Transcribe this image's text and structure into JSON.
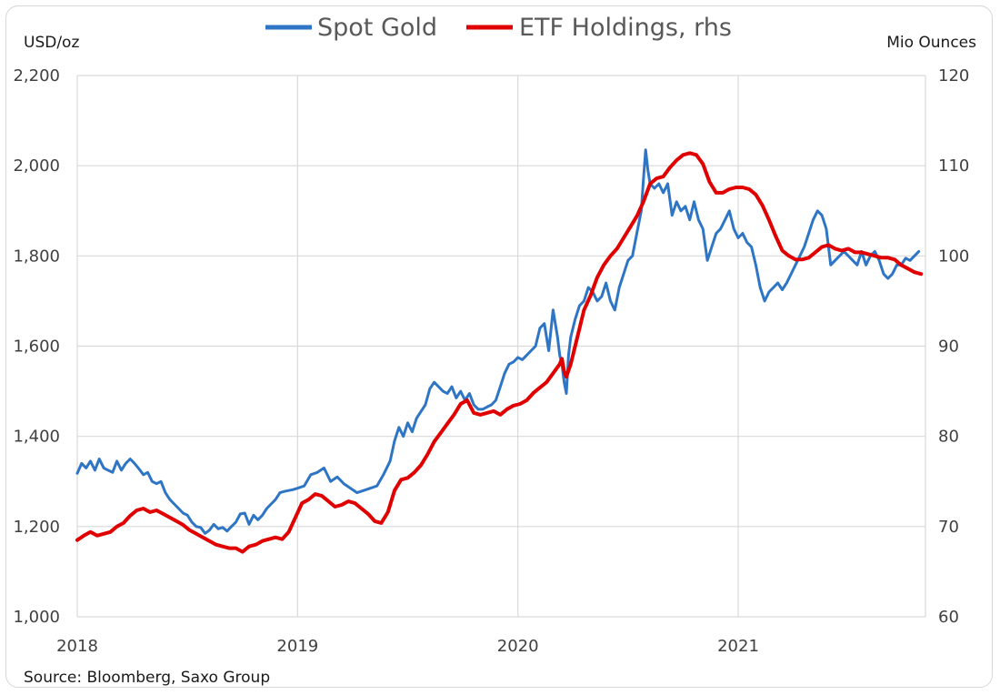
{
  "chart_data": {
    "type": "line",
    "title": "",
    "left_axis": {
      "label": "USD/oz",
      "min": 1000,
      "max": 2200,
      "ticks": [
        1000,
        1200,
        1400,
        1600,
        1800,
        2000,
        2200
      ],
      "tick_labels": [
        "1,000",
        "1,200",
        "1,400",
        "1,600",
        "1,800",
        "2,000",
        "2,200"
      ]
    },
    "right_axis": {
      "label": "Mio Ounces",
      "min": 60,
      "max": 120,
      "ticks": [
        60,
        70,
        80,
        90,
        100,
        110,
        120
      ],
      "tick_labels": [
        "60",
        "70",
        "80",
        "90",
        "100",
        "110",
        "120"
      ]
    },
    "x_axis": {
      "min": 2018.0,
      "max": 2021.85,
      "ticks": [
        2018,
        2019,
        2020,
        2021
      ],
      "tick_labels": [
        "2018",
        "2019",
        "2020",
        "2021"
      ]
    },
    "grid": true,
    "legend_placement": "top-center",
    "series": [
      {
        "name": "Spot Gold",
        "axis": "left",
        "color": "#2e75c5",
        "x": [
          2018.0,
          2018.02,
          2018.04,
          2018.06,
          2018.08,
          2018.1,
          2018.12,
          2018.14,
          2018.16,
          2018.18,
          2018.2,
          2018.22,
          2018.24,
          2018.26,
          2018.28,
          2018.3,
          2018.32,
          2018.34,
          2018.36,
          2018.38,
          2018.4,
          2018.42,
          2018.44,
          2018.46,
          2018.48,
          2018.5,
          2018.52,
          2018.54,
          2018.56,
          2018.58,
          2018.6,
          2018.62,
          2018.64,
          2018.66,
          2018.68,
          2018.7,
          2018.72,
          2018.74,
          2018.76,
          2018.78,
          2018.8,
          2018.82,
          2018.84,
          2018.86,
          2018.88,
          2018.9,
          2018.92,
          2018.94,
          2018.96,
          2018.98,
          2019.0,
          2019.03,
          2019.06,
          2019.09,
          2019.12,
          2019.15,
          2019.18,
          2019.21,
          2019.24,
          2019.27,
          2019.3,
          2019.33,
          2019.36,
          2019.39,
          2019.42,
          2019.44,
          2019.46,
          2019.48,
          2019.5,
          2019.52,
          2019.54,
          2019.56,
          2019.58,
          2019.6,
          2019.62,
          2019.64,
          2019.66,
          2019.68,
          2019.7,
          2019.72,
          2019.74,
          2019.76,
          2019.78,
          2019.8,
          2019.82,
          2019.84,
          2019.86,
          2019.88,
          2019.9,
          2019.92,
          2019.94,
          2019.96,
          2019.98,
          2020.0,
          2020.02,
          2020.04,
          2020.06,
          2020.08,
          2020.1,
          2020.12,
          2020.14,
          2020.16,
          2020.18,
          2020.19,
          2020.2,
          2020.21,
          2020.22,
          2020.23,
          2020.24,
          2020.26,
          2020.28,
          2020.3,
          2020.32,
          2020.34,
          2020.36,
          2020.38,
          2020.4,
          2020.42,
          2020.44,
          2020.46,
          2020.48,
          2020.5,
          2020.52,
          2020.54,
          2020.56,
          2020.57,
          2020.58,
          2020.59,
          2020.6,
          2020.62,
          2020.64,
          2020.66,
          2020.68,
          2020.7,
          2020.72,
          2020.74,
          2020.76,
          2020.78,
          2020.8,
          2020.82,
          2020.84,
          2020.86,
          2020.88,
          2020.9,
          2020.92,
          2020.94,
          2020.96,
          2020.98,
          2021.0,
          2021.02,
          2021.04,
          2021.06,
          2021.08,
          2021.1,
          2021.12,
          2021.14,
          2021.16,
          2021.18,
          2021.2,
          2021.22,
          2021.24,
          2021.26,
          2021.28,
          2021.3,
          2021.32,
          2021.34,
          2021.36,
          2021.38,
          2021.4,
          2021.42,
          2021.44,
          2021.46,
          2021.48,
          2021.5,
          2021.52,
          2021.54,
          2021.56,
          2021.58,
          2021.6,
          2021.62,
          2021.64,
          2021.66,
          2021.68,
          2021.7,
          2021.72,
          2021.74,
          2021.76,
          2021.78,
          2021.8,
          2021.82
        ],
        "values": [
          1318,
          1340,
          1330,
          1345,
          1325,
          1350,
          1330,
          1325,
          1320,
          1345,
          1325,
          1340,
          1350,
          1340,
          1328,
          1315,
          1320,
          1300,
          1295,
          1300,
          1275,
          1260,
          1250,
          1240,
          1230,
          1225,
          1210,
          1200,
          1198,
          1185,
          1192,
          1205,
          1195,
          1198,
          1190,
          1200,
          1210,
          1228,
          1230,
          1205,
          1225,
          1215,
          1225,
          1240,
          1250,
          1260,
          1275,
          1278,
          1280,
          1282,
          1285,
          1290,
          1315,
          1320,
          1330,
          1300,
          1310,
          1295,
          1285,
          1275,
          1280,
          1285,
          1290,
          1315,
          1345,
          1390,
          1420,
          1400,
          1430,
          1410,
          1440,
          1455,
          1470,
          1505,
          1520,
          1510,
          1500,
          1495,
          1510,
          1485,
          1500,
          1480,
          1495,
          1470,
          1460,
          1460,
          1465,
          1470,
          1480,
          1510,
          1540,
          1560,
          1565,
          1575,
          1570,
          1580,
          1590,
          1600,
          1640,
          1650,
          1590,
          1680,
          1620,
          1580,
          1560,
          1520,
          1495,
          1580,
          1620,
          1660,
          1690,
          1700,
          1730,
          1720,
          1700,
          1710,
          1740,
          1700,
          1680,
          1730,
          1760,
          1790,
          1800,
          1850,
          1900,
          1970,
          2035,
          1990,
          1960,
          1950,
          1960,
          1940,
          1960,
          1890,
          1920,
          1900,
          1910,
          1880,
          1920,
          1880,
          1860,
          1790,
          1820,
          1850,
          1860,
          1880,
          1900,
          1860,
          1840,
          1850,
          1830,
          1820,
          1780,
          1730,
          1700,
          1720,
          1730,
          1740,
          1725,
          1740,
          1760,
          1780,
          1800,
          1820,
          1850,
          1880,
          1900,
          1890,
          1860,
          1780,
          1790,
          1800,
          1810,
          1800,
          1790,
          1780,
          1810,
          1780,
          1800,
          1810,
          1790,
          1760,
          1750,
          1760,
          1780,
          1780,
          1795,
          1790,
          1800,
          1810
        ]
      },
      {
        "name": "ETF Holdings, rhs",
        "axis": "right",
        "color": "#e00000",
        "x": [
          2018.0,
          2018.03,
          2018.06,
          2018.09,
          2018.12,
          2018.15,
          2018.18,
          2018.21,
          2018.24,
          2018.27,
          2018.3,
          2018.33,
          2018.36,
          2018.39,
          2018.42,
          2018.45,
          2018.48,
          2018.51,
          2018.54,
          2018.57,
          2018.6,
          2018.63,
          2018.66,
          2018.69,
          2018.72,
          2018.75,
          2018.78,
          2018.81,
          2018.84,
          2018.87,
          2018.9,
          2018.93,
          2018.96,
          2018.99,
          2019.02,
          2019.05,
          2019.08,
          2019.11,
          2019.14,
          2019.17,
          2019.2,
          2019.23,
          2019.26,
          2019.29,
          2019.32,
          2019.35,
          2019.38,
          2019.41,
          2019.44,
          2019.47,
          2019.5,
          2019.53,
          2019.56,
          2019.59,
          2019.62,
          2019.65,
          2019.68,
          2019.71,
          2019.74,
          2019.77,
          2019.8,
          2019.83,
          2019.86,
          2019.89,
          2019.92,
          2019.95,
          2019.98,
          2020.01,
          2020.04,
          2020.07,
          2020.1,
          2020.13,
          2020.16,
          2020.19,
          2020.2,
          2020.21,
          2020.22,
          2020.24,
          2020.27,
          2020.3,
          2020.33,
          2020.36,
          2020.39,
          2020.42,
          2020.45,
          2020.48,
          2020.51,
          2020.54,
          2020.57,
          2020.6,
          2020.63,
          2020.66,
          2020.69,
          2020.72,
          2020.75,
          2020.78,
          2020.81,
          2020.84,
          2020.87,
          2020.9,
          2020.93,
          2020.96,
          2020.99,
          2021.02,
          2021.05,
          2021.08,
          2021.11,
          2021.14,
          2021.17,
          2021.2,
          2021.23,
          2021.26,
          2021.29,
          2021.32,
          2021.35,
          2021.38,
          2021.41,
          2021.44,
          2021.47,
          2021.5,
          2021.53,
          2021.56,
          2021.59,
          2021.62,
          2021.65,
          2021.68,
          2021.71,
          2021.74,
          2021.77,
          2021.8,
          2021.83
        ],
        "values": [
          68.5,
          69.0,
          69.4,
          69.0,
          69.2,
          69.4,
          70.0,
          70.4,
          71.2,
          71.8,
          72.0,
          71.6,
          71.8,
          71.4,
          71.0,
          70.6,
          70.2,
          69.6,
          69.2,
          68.8,
          68.4,
          68.0,
          67.8,
          67.6,
          67.6,
          67.2,
          67.8,
          68.0,
          68.4,
          68.6,
          68.8,
          68.6,
          69.4,
          71.0,
          72.6,
          73.0,
          73.6,
          73.4,
          72.8,
          72.2,
          72.4,
          72.8,
          72.6,
          72.0,
          71.4,
          70.6,
          70.4,
          71.6,
          74.0,
          75.2,
          75.4,
          76.0,
          76.8,
          78.0,
          79.4,
          80.4,
          81.4,
          82.4,
          83.6,
          84.0,
          82.6,
          82.4,
          82.6,
          82.8,
          82.4,
          83.0,
          83.4,
          83.6,
          84.0,
          84.8,
          85.4,
          86.0,
          87.0,
          88.0,
          88.6,
          87.2,
          86.6,
          88.0,
          91.0,
          94.0,
          95.6,
          97.6,
          99.0,
          100.0,
          100.8,
          102.0,
          103.2,
          104.4,
          106.0,
          108.0,
          108.6,
          108.8,
          109.8,
          110.6,
          111.2,
          111.4,
          111.2,
          110.2,
          108.2,
          107.0,
          107.0,
          107.4,
          107.6,
          107.6,
          107.4,
          106.8,
          105.6,
          104.0,
          102.2,
          100.6,
          100.0,
          99.6,
          99.6,
          99.8,
          100.4,
          101.0,
          101.2,
          100.8,
          100.6,
          100.8,
          100.4,
          100.4,
          100.2,
          100.0,
          99.8,
          99.8,
          99.6,
          99.0,
          98.6,
          98.2,
          98.0
        ]
      }
    ]
  },
  "source": "Source: Bloomberg, Saxo Group"
}
